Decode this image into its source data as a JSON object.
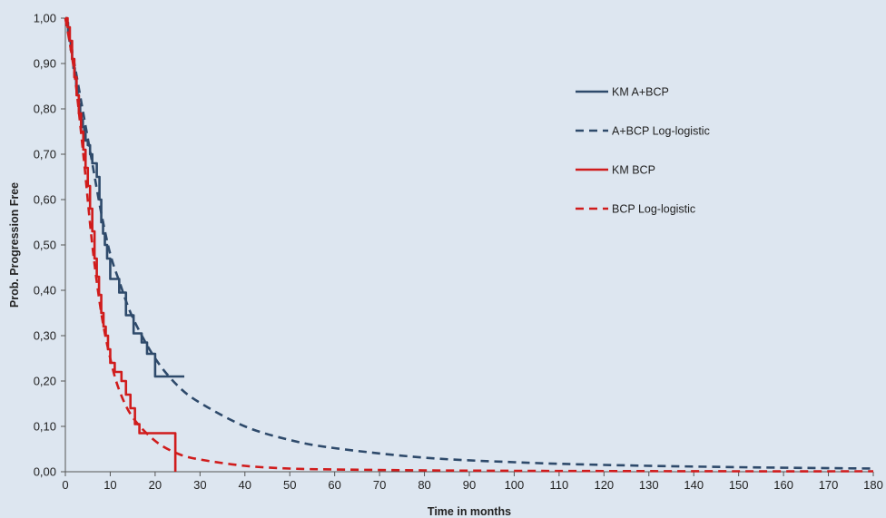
{
  "chart_data": {
    "type": "line",
    "title": "",
    "xlabel": "Time in months",
    "ylabel": "Prob. Progression Free",
    "xlim": [
      0,
      180
    ],
    "ylim": [
      0,
      1
    ],
    "x_ticks": [
      0,
      10,
      20,
      30,
      40,
      50,
      60,
      70,
      80,
      90,
      100,
      110,
      120,
      130,
      140,
      150,
      160,
      170,
      180
    ],
    "x_tick_labels": [
      "0",
      "10",
      "20",
      "30",
      "40",
      "50",
      "60",
      "70",
      "80",
      "90",
      "100",
      "110",
      "120",
      "130",
      "140",
      "150",
      "160",
      "170",
      "180"
    ],
    "y_ticks": [
      0,
      0.1,
      0.2,
      0.3,
      0.4,
      0.5,
      0.6,
      0.7,
      0.8,
      0.9,
      1.0
    ],
    "y_tick_labels": [
      "0,00",
      "0,10",
      "0,20",
      "0,30",
      "0,40",
      "0,50",
      "0,60",
      "0,70",
      "0,80",
      "0,90",
      "1,00"
    ],
    "grid": false,
    "legend_position": "top-right",
    "colors": {
      "plot_background": "#dde6f0",
      "a_bcp": "#2e4a6b",
      "bcp": "#d01c1c",
      "axis": "#555555"
    },
    "series": [
      {
        "name": "KM A+BCP",
        "style": "step",
        "dash": "solid",
        "color": "#2e4a6b",
        "x": [
          0,
          0.3,
          0.6,
          0.9,
          1.2,
          1.5,
          1.8,
          2.1,
          2.4,
          2.7,
          3.0,
          3.3,
          3.6,
          3.9,
          4.2,
          4.5,
          5.0,
          5.5,
          6.0,
          7.0,
          7.6,
          8.0,
          8.4,
          8.8,
          9.3,
          10.0,
          12.0,
          13.5,
          15.2,
          17.0,
          18.2,
          20.0,
          26.5
        ],
        "y": [
          1.0,
          0.99,
          0.97,
          0.95,
          0.93,
          0.91,
          0.89,
          0.87,
          0.85,
          0.83,
          0.81,
          0.79,
          0.775,
          0.76,
          0.745,
          0.73,
          0.72,
          0.7,
          0.68,
          0.65,
          0.6,
          0.55,
          0.525,
          0.5,
          0.47,
          0.425,
          0.395,
          0.345,
          0.305,
          0.285,
          0.26,
          0.21,
          0.21
        ]
      },
      {
        "name": "A+BCP Log-logistic",
        "style": "curve",
        "dash": "dashed",
        "color": "#2e4a6b",
        "x": [
          0,
          2,
          4,
          6,
          8,
          10,
          12,
          15,
          20,
          25,
          30,
          40,
          50,
          60,
          80,
          100,
          120,
          150,
          180
        ],
        "y": [
          1.0,
          0.9,
          0.79,
          0.68,
          0.57,
          0.48,
          0.42,
          0.34,
          0.25,
          0.19,
          0.152,
          0.1,
          0.07,
          0.052,
          0.031,
          0.021,
          0.015,
          0.01,
          0.007
        ]
      },
      {
        "name": "KM BCP",
        "style": "step",
        "dash": "solid",
        "color": "#d01c1c",
        "x": [
          0,
          0.5,
          1.0,
          1.5,
          2.0,
          2.5,
          3.0,
          3.5,
          4.0,
          4.5,
          5.0,
          5.5,
          6.0,
          6.5,
          7.0,
          7.5,
          8.0,
          8.5,
          9.0,
          9.5,
          10.0,
          11.0,
          12.5,
          13.5,
          14.5,
          15.5,
          16.5,
          24.5,
          24.5
        ],
        "y": [
          1.0,
          0.98,
          0.95,
          0.91,
          0.87,
          0.83,
          0.79,
          0.75,
          0.71,
          0.67,
          0.63,
          0.58,
          0.53,
          0.47,
          0.43,
          0.39,
          0.35,
          0.32,
          0.3,
          0.27,
          0.24,
          0.22,
          0.2,
          0.17,
          0.14,
          0.105,
          0.085,
          0.085,
          0.0
        ]
      },
      {
        "name": "BCP Log-logistic",
        "style": "curve",
        "dash": "dashed",
        "color": "#d01c1c",
        "x": [
          0,
          2,
          4,
          6,
          8,
          10,
          12,
          15,
          20,
          25,
          30,
          40,
          50,
          60,
          80,
          100,
          120,
          150,
          180
        ],
        "y": [
          1.0,
          0.88,
          0.7,
          0.5,
          0.35,
          0.25,
          0.18,
          0.12,
          0.068,
          0.04,
          0.027,
          0.013,
          0.007,
          0.005,
          0.003,
          0.002,
          0.0015,
          0.001,
          0.001
        ]
      }
    ]
  }
}
